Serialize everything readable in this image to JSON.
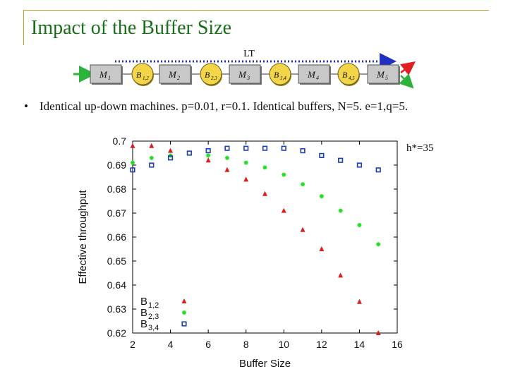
{
  "slide": {
    "title": "Impact of the Buffer Size",
    "bullet": "Identical up-down machines. p=0.01, r=0.1. Identical buffers, N=5. e=1,q=5.",
    "annotation": "h*=35"
  },
  "line_diagram": {
    "lt_label": "LT",
    "machines": [
      "M",
      "M",
      "M",
      "M",
      "M"
    ],
    "machine_subscripts": [
      "1",
      "2",
      "3",
      "4",
      "5"
    ],
    "buffers": [
      "B",
      "B",
      "B",
      "B"
    ],
    "buffer_subscripts": [
      "1,2",
      "2,3",
      "3,4",
      "4,5"
    ],
    "colors": {
      "machine_fill": "#c8c8c8",
      "buffer_fill": "#f2d548",
      "lt_line": "#2030c0",
      "in_arrow": "#2bb33a",
      "out_red": "#e02020",
      "out_green": "#2bb33a"
    }
  },
  "chart_data": {
    "type": "scatter",
    "title": "",
    "xlabel": "Buffer Size",
    "ylabel": "Effective throughput",
    "xlim": [
      2,
      16
    ],
    "ylim": [
      0.62,
      0.7
    ],
    "xticks": [
      "2",
      "4",
      "6",
      "8",
      "10",
      "12",
      "14",
      "16"
    ],
    "yticks": [
      "0.62",
      "0.63",
      "0.64",
      "0.65",
      "0.66",
      "0.67",
      "0.68",
      "0.69",
      "0.7"
    ],
    "legend_placement": "bottom-left",
    "series": [
      {
        "name": "B",
        "sub": "1,2",
        "marker": "triangle",
        "color": "#d81e1e",
        "x": [
          2,
          3,
          4,
          6,
          7,
          8,
          9,
          10,
          11,
          12,
          13,
          14,
          15
        ],
        "y": [
          0.698,
          0.698,
          0.696,
          0.692,
          0.688,
          0.684,
          0.678,
          0.671,
          0.663,
          0.655,
          0.644,
          0.633,
          0.62
        ]
      },
      {
        "name": "B",
        "sub": "2,3",
        "marker": "star",
        "color": "#22dd22",
        "x": [
          2,
          3,
          4,
          6,
          7,
          8,
          9,
          10,
          11,
          12,
          13,
          14,
          15
        ],
        "y": [
          0.691,
          0.693,
          0.694,
          0.694,
          0.693,
          0.691,
          0.689,
          0.686,
          0.682,
          0.677,
          0.671,
          0.665,
          0.657
        ]
      },
      {
        "name": "B",
        "sub": "3,4",
        "marker": "square",
        "color": "#1f3fb0",
        "x": [
          2,
          3,
          4,
          5,
          6,
          7,
          8,
          9,
          10,
          11,
          12,
          13,
          14,
          15
        ],
        "y": [
          0.688,
          0.69,
          0.693,
          0.695,
          0.696,
          0.697,
          0.697,
          0.697,
          0.697,
          0.696,
          0.694,
          0.692,
          0.69,
          0.688
        ]
      }
    ]
  }
}
